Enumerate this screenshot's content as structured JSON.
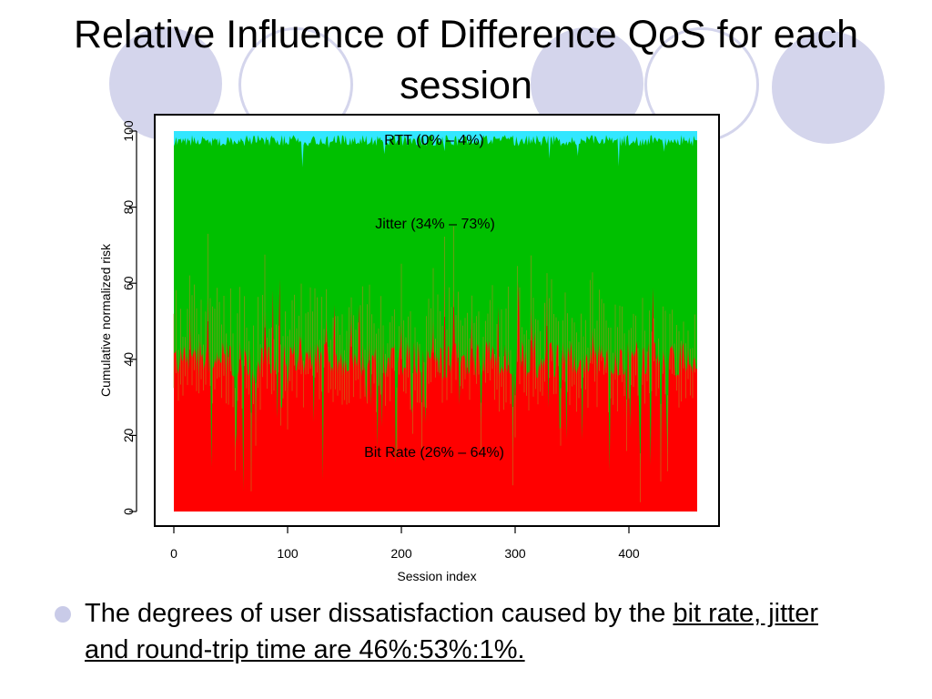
{
  "slide": {
    "title": "Relative  Influence of Difference QoS for each session",
    "bullet_text": "The degrees of user dissatisfaction caused by the ",
    "bullet_underlined": "bit rate, jitter and round-trip time are 46%:53%:1%.",
    "accent_color": "#d4d5ec",
    "bullet_icon": "circle-bullet-icon"
  },
  "chart_data": {
    "type": "area",
    "stacked": true,
    "xlabel": "Session index",
    "ylabel": "Cumulative normalized risk",
    "xlim": [
      0,
      460
    ],
    "ylim": [
      0,
      100
    ],
    "xticks": [
      0,
      100,
      200,
      300,
      400
    ],
    "yticks": [
      0,
      20,
      40,
      60,
      80,
      100
    ],
    "grid": false,
    "series": [
      {
        "name": "Bit Rate",
        "label": "Bit Rate (26% – 64%)",
        "color": "#ff0000",
        "range": [
          26,
          64
        ]
      },
      {
        "name": "Jitter",
        "label": "Jitter (34% – 73%)",
        "color": "#00c000",
        "range": [
          34,
          73
        ]
      },
      {
        "name": "RTT",
        "label": "RTT (0% – 4%)",
        "color": "#33e6ff",
        "range": [
          0,
          4
        ]
      }
    ]
  }
}
